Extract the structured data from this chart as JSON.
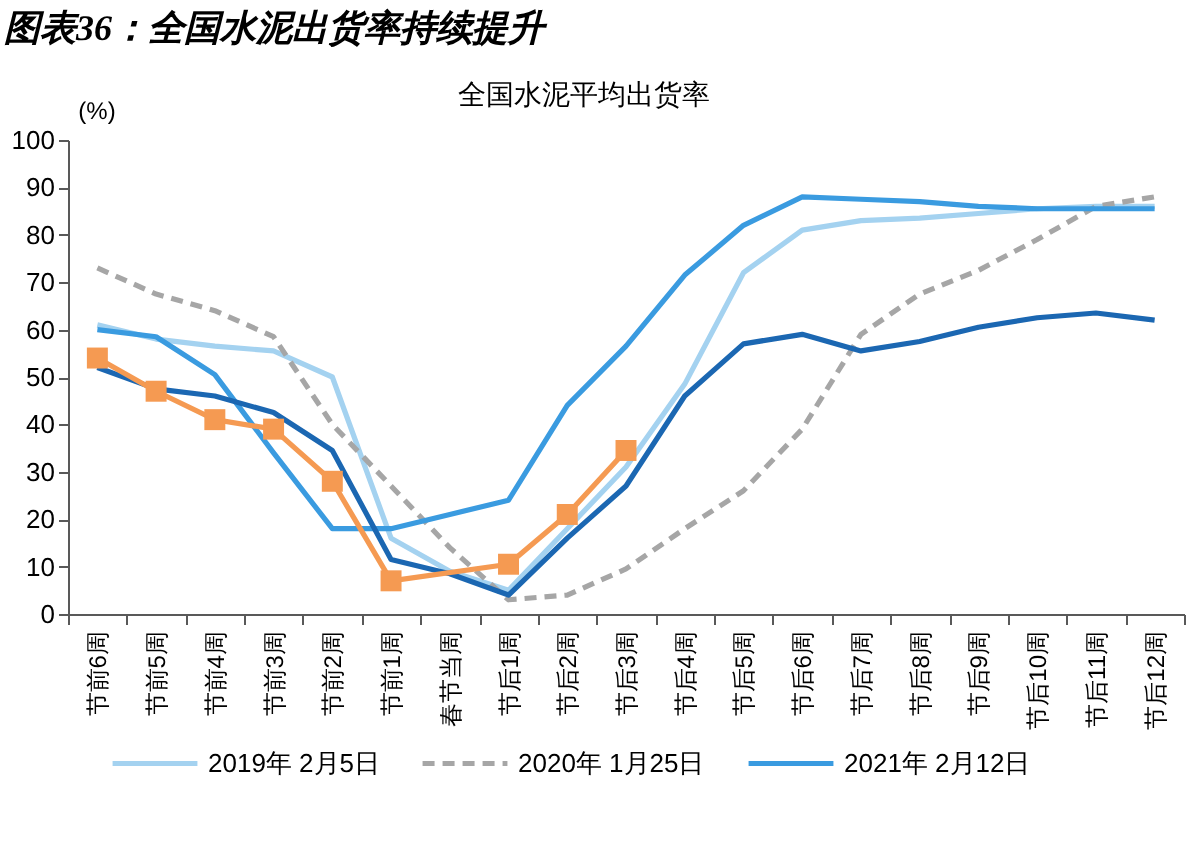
{
  "chart_data": {
    "type": "line",
    "title": "图表36：全国水泥出货率持续提升",
    "subtitle": "全国水泥平均出货率",
    "ylabel": "(%)",
    "categories": [
      "节前6周",
      "节前5周",
      "节前4周",
      "节前3周",
      "节前2周",
      "节前1周",
      "春节当周",
      "节后1周",
      "节后2周",
      "节后3周",
      "节后4周",
      "节后5周",
      "节后6周",
      "节后7周",
      "节后8周",
      "节后9周",
      "节后10周",
      "节后11周",
      "节后12周"
    ],
    "series": [
      {
        "name": "2019年 2月5日",
        "color": "#a4d2f0",
        "values": [
          61,
          58,
          56.5,
          55.5,
          50,
          16,
          9,
          5,
          18,
          31,
          48.5,
          72,
          81,
          83,
          83.5,
          84.5,
          85.5,
          86,
          86
        ]
      },
      {
        "name": "2020年 1月25日",
        "color": "#a6a6a6",
        "line_style": "dashed",
        "values": [
          73,
          67.5,
          64,
          58.5,
          40,
          27,
          14,
          3,
          4,
          9.5,
          18,
          26,
          39,
          59,
          67.5,
          72.5,
          79,
          86,
          88
        ]
      },
      {
        "name": "2021年 2月12日",
        "color": "#3a9be0",
        "values": [
          60,
          58.5,
          50.5,
          34,
          18,
          18,
          21,
          24,
          44,
          56.5,
          71.5,
          82,
          88,
          87.5,
          87,
          86,
          85.5,
          85.5,
          85.5
        ]
      },
      {
        "color": "#1b67b2",
        "values": [
          52,
          47.5,
          46,
          42.5,
          34.5,
          11.5,
          8.5,
          4,
          16,
          27,
          46,
          57,
          59,
          55.5,
          57.5,
          60.5,
          62.5,
          63.5,
          62
        ]
      },
      {
        "color": "#f59a52",
        "marker": "square",
        "values": [
          54,
          47,
          41,
          39,
          28,
          7,
          null,
          10.5,
          21,
          34.5,
          null,
          null,
          null,
          null,
          null,
          null,
          null,
          null,
          null
        ]
      }
    ],
    "ylim": [
      0,
      100
    ],
    "yticks": [
      0,
      10,
      20,
      30,
      40,
      50,
      60,
      70,
      80,
      90,
      100
    ],
    "legend": "bottom"
  }
}
